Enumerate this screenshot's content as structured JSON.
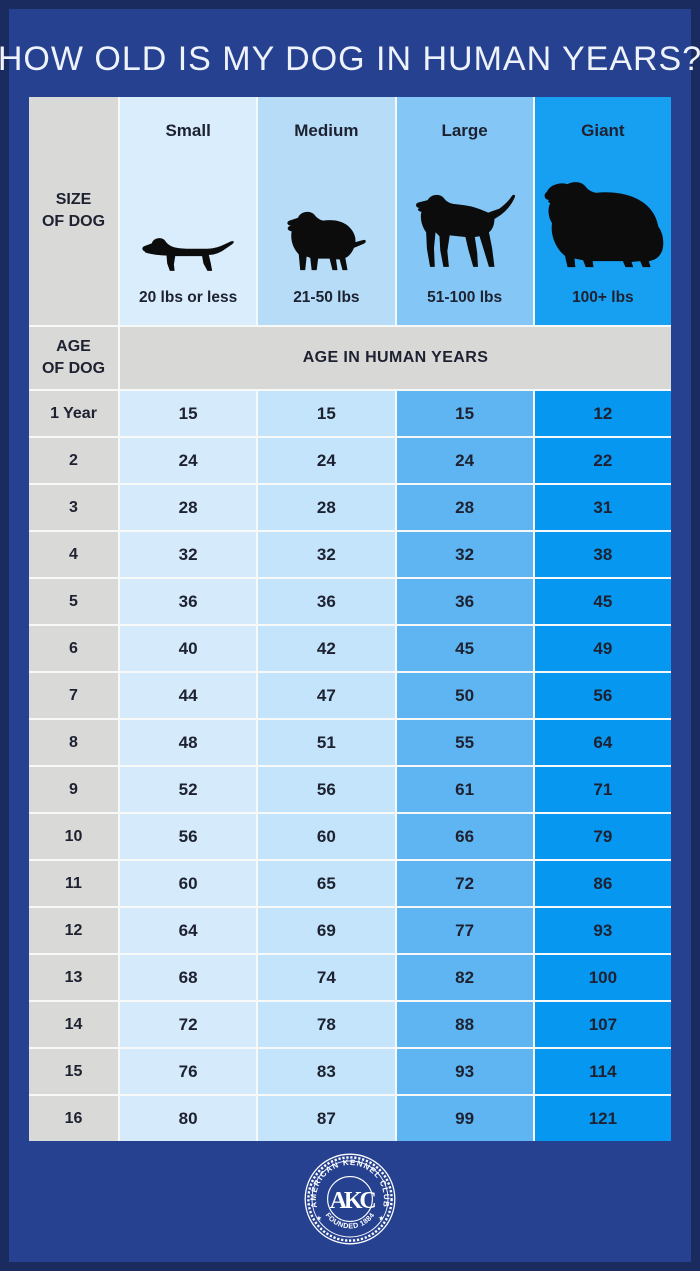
{
  "title": "HOW OLD IS MY DOG IN HUMAN YEARS?",
  "table": {
    "size_label": {
      "line1": "SIZE",
      "line2": "OF DOG"
    },
    "age_label": {
      "line1": "AGE",
      "line2": "OF DOG"
    },
    "band_label": "AGE IN HUMAN YEARS",
    "columns": [
      {
        "name": "Small",
        "weight": "20 lbs or less",
        "icon": "dachshund-icon"
      },
      {
        "name": "Medium",
        "weight": "21-50 lbs",
        "icon": "spaniel-icon"
      },
      {
        "name": "Large",
        "weight": "51-100 lbs",
        "icon": "pointer-icon"
      },
      {
        "name": "Giant",
        "weight": "100+ lbs",
        "icon": "newfoundland-icon"
      }
    ],
    "rows": [
      {
        "age": "1 Year",
        "values": [
          "15",
          "15",
          "15",
          "12"
        ]
      },
      {
        "age": "2",
        "values": [
          "24",
          "24",
          "24",
          "22"
        ]
      },
      {
        "age": "3",
        "values": [
          "28",
          "28",
          "28",
          "31"
        ]
      },
      {
        "age": "4",
        "values": [
          "32",
          "32",
          "32",
          "38"
        ]
      },
      {
        "age": "5",
        "values": [
          "36",
          "36",
          "36",
          "45"
        ]
      },
      {
        "age": "6",
        "values": [
          "40",
          "42",
          "45",
          "49"
        ]
      },
      {
        "age": "7",
        "values": [
          "44",
          "47",
          "50",
          "56"
        ]
      },
      {
        "age": "8",
        "values": [
          "48",
          "51",
          "55",
          "64"
        ]
      },
      {
        "age": "9",
        "values": [
          "52",
          "56",
          "61",
          "71"
        ]
      },
      {
        "age": "10",
        "values": [
          "56",
          "60",
          "66",
          "79"
        ]
      },
      {
        "age": "11",
        "values": [
          "60",
          "65",
          "72",
          "86"
        ]
      },
      {
        "age": "12",
        "values": [
          "64",
          "69",
          "77",
          "93"
        ]
      },
      {
        "age": "13",
        "values": [
          "68",
          "74",
          "82",
          "100"
        ]
      },
      {
        "age": "14",
        "values": [
          "72",
          "78",
          "88",
          "107"
        ]
      },
      {
        "age": "15",
        "values": [
          "76",
          "83",
          "93",
          "114"
        ]
      },
      {
        "age": "16",
        "values": [
          "80",
          "87",
          "99",
          "121"
        ]
      }
    ]
  },
  "logo": {
    "organization": "AMERICAN KENNEL CLUB",
    "founded": "FOUNDED 1884",
    "monogram": "AKC",
    "star": "★"
  },
  "colors": {
    "frame": "#1a2b60",
    "background": "#254190",
    "title_text": "#eef2fa",
    "cell_text": "#1d2130",
    "label_gray": "#d9d9d7",
    "band_gray": "#d8d8d6",
    "small_header": "#d9edfc",
    "small_cell": "#d5ebfc",
    "medium_header": "#b6dcf8",
    "medium_cell": "#c3e4fa",
    "large_header": "#84c7f6",
    "large_cell": "#5fb5f2",
    "giant_header": "#17a0f2",
    "giant_cell": "#0697f1",
    "grid_line": "#f7f8f8",
    "silhouette": "#0c0c0c"
  },
  "chart_data": {
    "type": "table",
    "title": "HOW OLD IS MY DOG IN HUMAN YEARS?",
    "row_header": "AGE OF DOG",
    "value_header": "AGE IN HUMAN YEARS",
    "columns": [
      {
        "size": "Small",
        "weight": "20 lbs or less"
      },
      {
        "size": "Medium",
        "weight": "21-50 lbs"
      },
      {
        "size": "Large",
        "weight": "51-100 lbs"
      },
      {
        "size": "Giant",
        "weight": "100+ lbs"
      }
    ],
    "dog_ages": [
      "1 Year",
      "2",
      "3",
      "4",
      "5",
      "6",
      "7",
      "8",
      "9",
      "10",
      "11",
      "12",
      "13",
      "14",
      "15",
      "16"
    ],
    "series": [
      {
        "name": "Small",
        "values": [
          15,
          24,
          28,
          32,
          36,
          40,
          44,
          48,
          52,
          56,
          60,
          64,
          68,
          72,
          76,
          80
        ]
      },
      {
        "name": "Medium",
        "values": [
          15,
          24,
          28,
          32,
          36,
          42,
          47,
          51,
          56,
          60,
          65,
          69,
          74,
          78,
          83,
          87
        ]
      },
      {
        "name": "Large",
        "values": [
          15,
          24,
          28,
          32,
          36,
          45,
          50,
          55,
          61,
          66,
          72,
          77,
          82,
          88,
          93,
          99
        ]
      },
      {
        "name": "Giant",
        "values": [
          12,
          22,
          31,
          38,
          45,
          49,
          56,
          64,
          71,
          79,
          86,
          93,
          100,
          107,
          114,
          121
        ]
      }
    ],
    "legend_position": "none",
    "source": "AMERICAN KENNEL CLUB · FOUNDED 1884"
  }
}
